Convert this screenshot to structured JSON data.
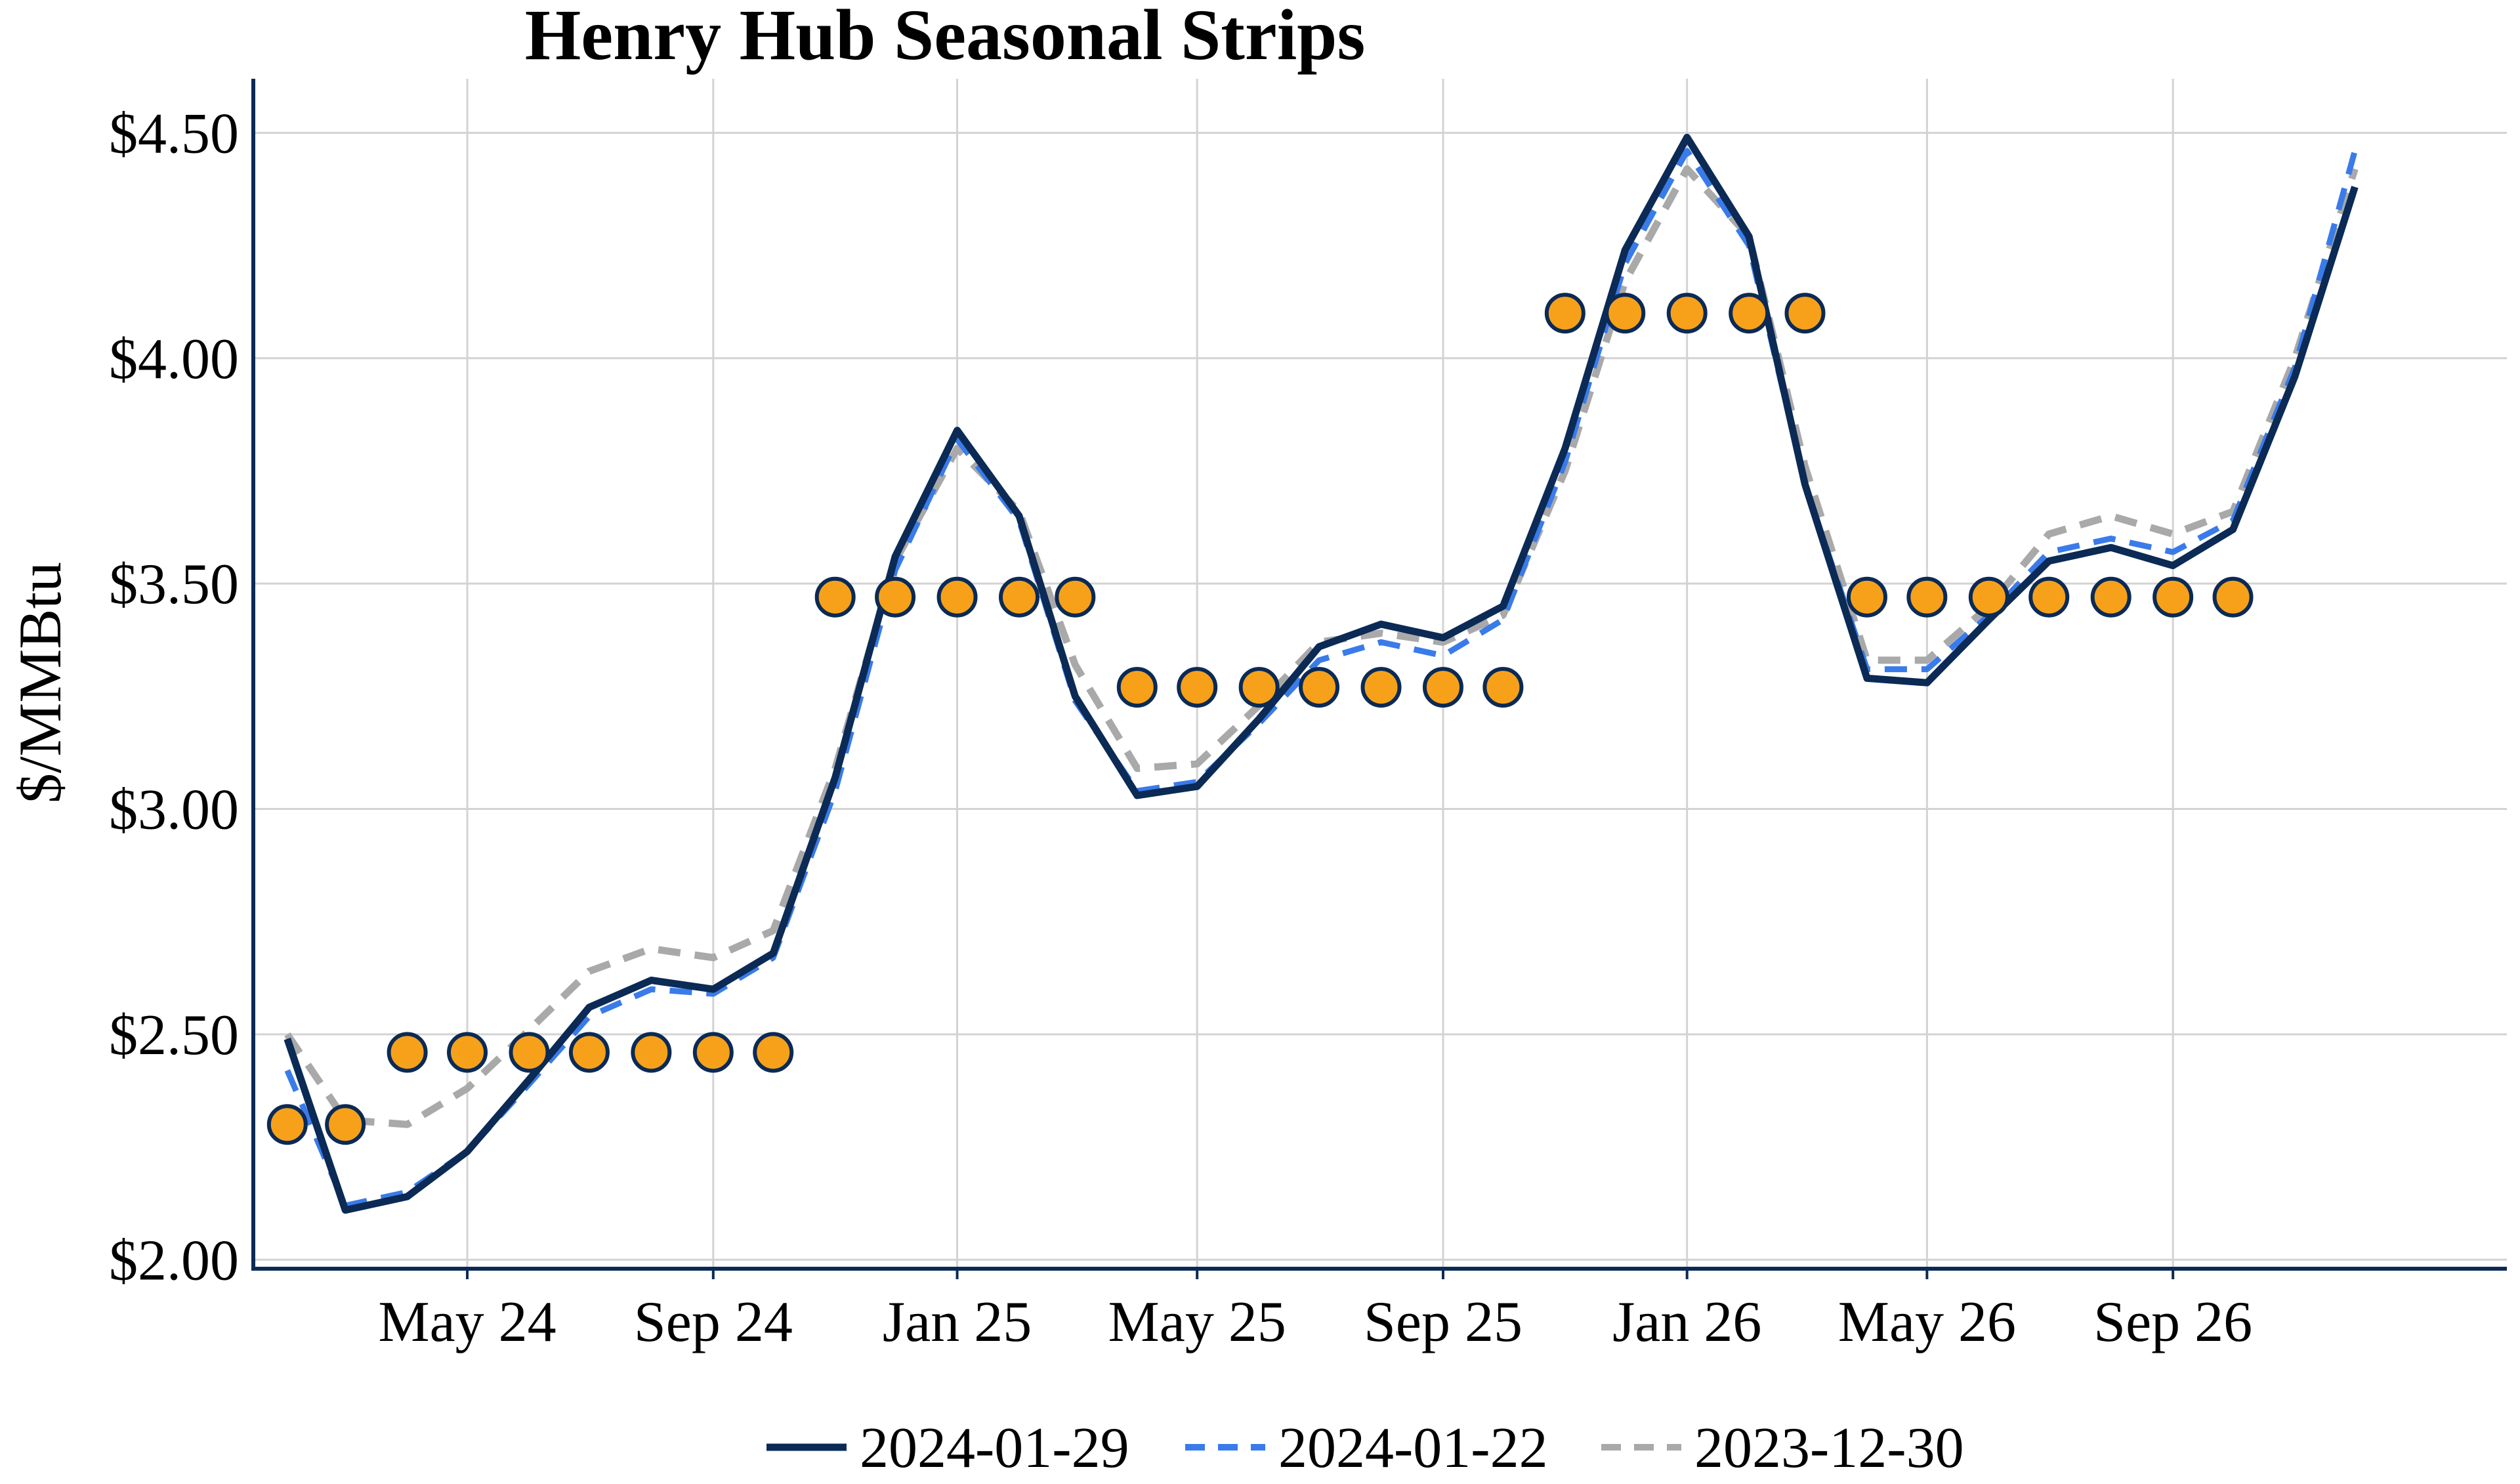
{
  "chart_data": {
    "type": "line",
    "title": "Henry Hub Seasonal Strips",
    "xlabel": "",
    "ylabel": "$/MMBtu",
    "ylim": [
      1.98,
      4.62
    ],
    "xlim": [
      "2024-01-15",
      "2027-02-15"
    ],
    "y_ticks": [
      2.0,
      2.5,
      3.0,
      3.5,
      4.0,
      4.5
    ],
    "y_tick_labels": [
      "$2.00",
      "$2.50",
      "$3.00",
      "$3.50",
      "$4.00",
      "$4.50"
    ],
    "x_ticks": [
      "2024-05-01",
      "2024-09-01",
      "2025-01-01",
      "2025-05-01",
      "2025-09-01",
      "2026-01-01",
      "2026-05-01",
      "2026-09-01"
    ],
    "x_tick_labels": [
      "May 24",
      "Sep 24",
      "Jan 25",
      "May 25",
      "Sep 25",
      "Jan 26",
      "May 26",
      "Sep 26"
    ],
    "grid": true,
    "legend_position": "bottom",
    "x": [
      "2024-02-01",
      "2024-03-01",
      "2024-04-01",
      "2024-05-01",
      "2024-06-01",
      "2024-07-01",
      "2024-08-01",
      "2024-09-01",
      "2024-10-01",
      "2024-11-01",
      "2024-12-01",
      "2025-01-01",
      "2025-02-01",
      "2025-03-01",
      "2025-04-01",
      "2025-05-01",
      "2025-06-01",
      "2025-07-01",
      "2025-08-01",
      "2025-09-01",
      "2025-10-01",
      "2025-11-01",
      "2025-12-01",
      "2026-01-01",
      "2026-02-01",
      "2026-03-01",
      "2026-04-01",
      "2026-05-01",
      "2026-06-01",
      "2026-07-01",
      "2026-08-01",
      "2026-09-01",
      "2026-10-01",
      "2026-11-01",
      "2026-12-01",
      "2027-01-01"
    ],
    "series": [
      {
        "name": "2024-01-29",
        "style": "solid",
        "color": "#0b2a55",
        "values": [
          2.49,
          2.11,
          2.14,
          2.24,
          2.4,
          2.56,
          2.62,
          2.6,
          2.68,
          3.07,
          3.56,
          3.84,
          3.65,
          3.25,
          3.03,
          3.05,
          3.2,
          3.36,
          3.41,
          3.38,
          3.45,
          3.8,
          4.24,
          4.49,
          4.27,
          3.72,
          3.29,
          3.28,
          3.42,
          3.55,
          3.58,
          3.54,
          3.62,
          3.96,
          4.38,
          null
        ]
      },
      {
        "name": "2024-01-22",
        "style": "dashed",
        "color": "#3a7bea",
        "values": [
          2.42,
          2.12,
          2.15,
          2.24,
          2.39,
          2.54,
          2.6,
          2.59,
          2.67,
          3.04,
          3.53,
          3.82,
          3.64,
          3.24,
          3.04,
          3.06,
          3.19,
          3.33,
          3.37,
          3.34,
          3.42,
          3.77,
          4.21,
          4.46,
          4.25,
          3.72,
          3.31,
          3.31,
          3.43,
          3.57,
          3.6,
          3.57,
          3.64,
          3.98,
          4.46,
          null
        ]
      },
      {
        "name": "2023-12-30",
        "style": "dashed",
        "color": "#a9a9a9",
        "values": [
          2.5,
          2.31,
          2.3,
          2.38,
          2.51,
          2.64,
          2.69,
          2.67,
          2.73,
          3.09,
          3.55,
          3.8,
          3.66,
          3.32,
          3.09,
          3.1,
          3.23,
          3.37,
          3.39,
          3.37,
          3.43,
          3.75,
          4.17,
          4.42,
          4.27,
          3.76,
          3.33,
          3.33,
          3.45,
          3.61,
          3.65,
          3.61,
          3.66,
          4.0,
          4.42,
          null
        ]
      }
    ],
    "strip_markers": {
      "fill": "#f7a11a",
      "edge": "#0b2a55",
      "points": [
        {
          "x": "2024-02-01",
          "y": 2.3
        },
        {
          "x": "2024-03-01",
          "y": 2.3
        },
        {
          "x": "2024-04-01",
          "y": 2.46
        },
        {
          "x": "2024-05-01",
          "y": 2.46
        },
        {
          "x": "2024-06-01",
          "y": 2.46
        },
        {
          "x": "2024-07-01",
          "y": 2.46
        },
        {
          "x": "2024-08-01",
          "y": 2.46
        },
        {
          "x": "2024-09-01",
          "y": 2.46
        },
        {
          "x": "2024-10-01",
          "y": 2.46
        },
        {
          "x": "2024-11-01",
          "y": 3.47
        },
        {
          "x": "2024-12-01",
          "y": 3.47
        },
        {
          "x": "2025-01-01",
          "y": 3.47
        },
        {
          "x": "2025-02-01",
          "y": 3.47
        },
        {
          "x": "2025-03-01",
          "y": 3.47
        },
        {
          "x": "2025-04-01",
          "y": 3.27
        },
        {
          "x": "2025-05-01",
          "y": 3.27
        },
        {
          "x": "2025-06-01",
          "y": 3.27
        },
        {
          "x": "2025-07-01",
          "y": 3.27
        },
        {
          "x": "2025-08-01",
          "y": 3.27
        },
        {
          "x": "2025-09-01",
          "y": 3.27
        },
        {
          "x": "2025-10-01",
          "y": 3.27
        },
        {
          "x": "2025-11-01",
          "y": 4.1
        },
        {
          "x": "2025-12-01",
          "y": 4.1
        },
        {
          "x": "2026-01-01",
          "y": 4.1
        },
        {
          "x": "2026-02-01",
          "y": 4.1
        },
        {
          "x": "2026-03-01",
          "y": 4.1
        },
        {
          "x": "2026-04-01",
          "y": 3.47
        },
        {
          "x": "2026-05-01",
          "y": 3.47
        },
        {
          "x": "2026-06-01",
          "y": 3.47
        },
        {
          "x": "2026-07-01",
          "y": 3.47
        },
        {
          "x": "2026-08-01",
          "y": 3.47
        },
        {
          "x": "2026-09-01",
          "y": 3.47
        },
        {
          "x": "2026-10-01",
          "y": 3.47
        }
      ]
    }
  }
}
